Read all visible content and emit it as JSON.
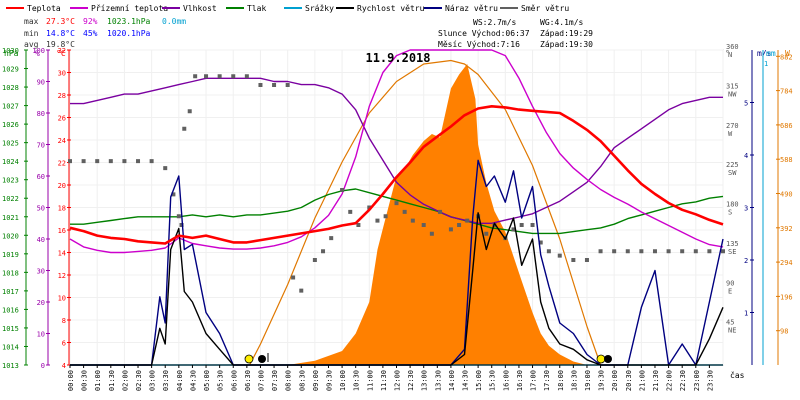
{
  "legend": [
    {
      "label": "Teplota",
      "color": "#ff0000"
    },
    {
      "label": "Přízemní teplota",
      "color": "#cc00cc"
    },
    {
      "label": "Vlhkost",
      "color": "#7a00a0"
    },
    {
      "label": "Tlak",
      "color": "#008000"
    },
    {
      "label": "Srážky",
      "color": "#00a0d0"
    },
    {
      "label": "Rychlost větru",
      "color": "#000000"
    },
    {
      "label": "Náraz větru",
      "color": "#000080"
    },
    {
      "label": "Směr větru",
      "color": "#606060"
    }
  ],
  "stats": {
    "max_label": "max",
    "max_temp": "27.3°C",
    "max_hum": "92%",
    "max_press": "1023.1hPa",
    "max_rain": "0.0mm",
    "min_label": "min",
    "min_temp": "14.8°C",
    "min_hum": "45%",
    "min_press": "1020.1hPa",
    "avg_label": "avg",
    "avg_temp": "19.8°C"
  },
  "info": {
    "ws": "WS:2.7m/s",
    "wg": "WG:4.1m/s",
    "sun_rise": "Slunce Východ:06:37",
    "sun_set": "Západ:19:29",
    "moon_rise": "Měsíc  Východ:7:16",
    "moon_set": "Západ:19:30"
  },
  "date": "11.9.2018",
  "axis_headers": {
    "hpa": "hPa",
    "pct": "%",
    "degc": "°C",
    "deg": "°",
    "ms": "m/s",
    "mm": "mm",
    "w": "W"
  },
  "axis_hpa": [
    "1030",
    "1029",
    "1028",
    "1027",
    "1026",
    "1025",
    "1024",
    "1023",
    "1022",
    "1021",
    "1020",
    "1019",
    "1018",
    "1017",
    "1016",
    "1015",
    "1014",
    "1013"
  ],
  "axis_pct": [
    "100",
    "90",
    "80",
    "70",
    "60",
    "50",
    "40",
    "30",
    "20",
    "10",
    "0"
  ],
  "axis_temp": [
    "32",
    "30",
    "28",
    "26",
    "24",
    "22",
    "20",
    "18",
    "16",
    "14",
    "12",
    "10",
    "8",
    "6",
    "4"
  ],
  "axis_deg": [
    {
      "v": "360",
      "d": "N"
    },
    {
      "v": "315",
      "d": "NW"
    },
    {
      "v": "270",
      "d": "W"
    },
    {
      "v": "225",
      "d": "SW"
    },
    {
      "v": "180",
      "d": "S"
    },
    {
      "v": "135",
      "d": "SE"
    },
    {
      "v": "90",
      "d": "E"
    },
    {
      "v": "45",
      "d": "NE"
    }
  ],
  "axis_ms": [
    "5",
    "4",
    "3",
    "2",
    "1"
  ],
  "axis_mm": [
    "1"
  ],
  "axis_w": [
    "882",
    "784",
    "686",
    "588",
    "490",
    "392",
    "294",
    "196",
    "98"
  ],
  "x_label": "čas",
  "chart_data": {
    "type": "line",
    "title": "11.9.2018",
    "xlabel": "čas",
    "x_ticks": [
      "00:00",
      "00:30",
      "01:00",
      "01:30",
      "02:00",
      "02:30",
      "03:00",
      "03:30",
      "04:00",
      "04:30",
      "05:00",
      "05:30",
      "06:00",
      "06:30",
      "07:00",
      "07:30",
      "08:00",
      "08:30",
      "09:00",
      "09:30",
      "10:00",
      "10:30",
      "11:00",
      "11:30",
      "12:00",
      "12:30",
      "13:00",
      "13:30",
      "14:00",
      "14:30",
      "15:00",
      "15:30",
      "16:00",
      "16:30",
      "17:00",
      "17:30",
      "18:00",
      "18:30",
      "19:00",
      "19:30",
      "20:00",
      "20:30",
      "21:00",
      "21:30",
      "22:00",
      "22:30",
      "23:00",
      "23:30"
    ],
    "xlim": [
      0,
      24
    ],
    "ylim_temp": [
      4,
      32
    ],
    "ylim_humidity": [
      0,
      100
    ],
    "ylim_pressure": [
      1013,
      1030
    ],
    "ylim_direction": [
      0,
      360
    ],
    "ylim_wind": [
      0,
      6
    ],
    "ylim_radiation": [
      0,
      900
    ],
    "series": [
      {
        "name": "Teplota",
        "axis": "temp",
        "color": "#ff0000",
        "x": [
          0,
          0.5,
          1,
          1.5,
          2,
          2.5,
          3,
          3.5,
          4,
          4.5,
          5,
          5.5,
          6,
          6.5,
          7,
          7.5,
          8,
          8.5,
          9,
          9.5,
          10,
          10.5,
          11,
          11.5,
          12,
          12.5,
          13,
          13.5,
          14,
          14.5,
          15,
          15.5,
          16,
          16.5,
          17,
          17.5,
          18,
          18.5,
          19,
          19.5,
          20,
          20.5,
          21,
          21.5,
          22,
          22.5,
          23,
          23.5,
          24
        ],
        "y": [
          16.2,
          15.9,
          15.5,
          15.3,
          15.2,
          15.0,
          14.9,
          14.8,
          15.5,
          15.3,
          15.5,
          15.2,
          14.9,
          14.9,
          15.1,
          15.3,
          15.5,
          15.7,
          15.9,
          16.1,
          16.4,
          16.6,
          17.8,
          19.2,
          20.7,
          22.0,
          23.4,
          24.3,
          25.2,
          26.2,
          26.8,
          27.0,
          26.9,
          26.7,
          26.6,
          26.5,
          26.4,
          25.7,
          24.9,
          23.9,
          22.6,
          21.3,
          20.1,
          19.2,
          18.4,
          17.8,
          17.4,
          16.9,
          16.5
        ]
      },
      {
        "name": "Přízemní teplota",
        "axis": "temp",
        "color": "#cc00cc",
        "x": [
          0,
          0.5,
          1,
          1.5,
          2,
          2.5,
          3,
          3.5,
          4,
          4.5,
          5,
          5.5,
          6,
          6.5,
          7,
          7.5,
          8,
          8.5,
          9,
          9.5,
          10,
          10.5,
          11,
          11.5,
          12,
          12.5,
          13,
          13.5,
          14,
          14.5,
          15,
          15.5,
          16,
          16.5,
          17,
          17.5,
          18,
          18.5,
          19,
          19.5,
          20,
          20.5,
          21,
          21.5,
          22,
          22.5,
          23,
          23.5,
          24
        ],
        "y": [
          15.2,
          14.5,
          14.2,
          14.0,
          14.0,
          14.1,
          14.2,
          14.4,
          15.3,
          14.8,
          14.6,
          14.4,
          14.3,
          14.3,
          14.4,
          14.6,
          14.9,
          15.4,
          16.2,
          17.3,
          19.2,
          22.5,
          27.0,
          30.0,
          31.5,
          32.0,
          32.0,
          32.0,
          32.0,
          32.0,
          32.0,
          32.0,
          31.5,
          29.5,
          27.0,
          24.7,
          22.8,
          21.5,
          20.5,
          19.6,
          18.9,
          18.3,
          17.6,
          17.0,
          16.4,
          15.8,
          15.2,
          14.7,
          14.5
        ]
      },
      {
        "name": "Vlhkost",
        "axis": "humidity",
        "color": "#7a00a0",
        "x": [
          0,
          0.5,
          1,
          1.5,
          2,
          2.5,
          3,
          3.5,
          4,
          4.5,
          5,
          5.5,
          6,
          6.5,
          7,
          7.5,
          8,
          8.5,
          9,
          9.5,
          10,
          10.5,
          11,
          11.5,
          12,
          12.5,
          13,
          13.5,
          14,
          14.5,
          15,
          15.5,
          16,
          16.5,
          17,
          17.5,
          18,
          18.5,
          19,
          19.5,
          20,
          20.5,
          21,
          21.5,
          22,
          22.5,
          23,
          23.5,
          24
        ],
        "y": [
          83,
          83,
          84,
          85,
          86,
          86,
          87,
          88,
          89,
          90,
          91,
          91,
          91,
          91,
          91,
          90,
          90,
          89,
          89,
          88,
          86,
          81,
          72,
          65,
          58,
          54,
          51,
          49,
          47,
          46,
          45,
          45,
          46,
          47,
          48,
          50,
          52,
          55,
          58,
          63,
          69,
          72,
          75,
          78,
          81,
          83,
          84,
          85,
          85
        ]
      },
      {
        "name": "Tlak",
        "axis": "pressure",
        "color": "#008000",
        "x": [
          0,
          0.5,
          1,
          1.5,
          2,
          2.5,
          3,
          3.5,
          4,
          4.5,
          5,
          5.5,
          6,
          6.5,
          7,
          7.5,
          8,
          8.5,
          9,
          9.5,
          10,
          10.5,
          11,
          11.5,
          12,
          12.5,
          13,
          13.5,
          14,
          14.5,
          15,
          15.5,
          16,
          16.5,
          17,
          17.5,
          18,
          18.5,
          19,
          19.5,
          20,
          20.5,
          21,
          21.5,
          22,
          22.5,
          23,
          23.5,
          24
        ],
        "y": [
          1020.6,
          1020.6,
          1020.7,
          1020.8,
          1020.9,
          1021.0,
          1021.0,
          1021.0,
          1021.0,
          1021.1,
          1021.0,
          1021.1,
          1021.0,
          1021.1,
          1021.1,
          1021.2,
          1021.3,
          1021.5,
          1021.9,
          1022.2,
          1022.4,
          1022.5,
          1022.3,
          1022.1,
          1021.9,
          1021.7,
          1021.5,
          1021.3,
          1021.0,
          1020.8,
          1020.6,
          1020.4,
          1020.3,
          1020.2,
          1020.1,
          1020.1,
          1020.1,
          1020.2,
          1020.3,
          1020.4,
          1020.6,
          1020.9,
          1021.1,
          1021.3,
          1021.5,
          1021.7,
          1021.8,
          1022.0,
          1022.1
        ]
      },
      {
        "name": "Rychlost větru",
        "axis": "wind",
        "color": "#000000",
        "x": [
          0,
          1,
          2,
          2.5,
          3,
          3.3,
          3.5,
          3.7,
          4,
          4.2,
          4.5,
          5,
          5.5,
          6,
          6.5,
          7,
          7.5,
          8,
          9,
          10,
          11,
          12,
          13,
          13.5,
          14,
          14.5,
          14.8,
          15,
          15.3,
          15.6,
          16,
          16.3,
          16.6,
          17,
          17.3,
          17.6,
          18,
          18.5,
          19,
          19.5,
          20,
          20.5,
          21,
          22,
          23,
          23.5,
          24
        ],
        "y": [
          0,
          0,
          0,
          0,
          0,
          0.7,
          0.4,
          2.2,
          2.6,
          1.4,
          1.2,
          0.6,
          0.3,
          0,
          0,
          0,
          0,
          0,
          0,
          0,
          0,
          0,
          0,
          0,
          0,
          0.2,
          1.8,
          2.9,
          2.2,
          2.7,
          2.4,
          2.8,
          1.9,
          2.4,
          1.2,
          0.7,
          0.4,
          0.3,
          0.1,
          0,
          0,
          0,
          0,
          0,
          0,
          0.5,
          1.1
        ]
      },
      {
        "name": "Náraz větru",
        "axis": "wind",
        "color": "#000080",
        "x": [
          0,
          1,
          2,
          2.5,
          3,
          3.3,
          3.5,
          3.7,
          4,
          4.2,
          4.5,
          5,
          5.5,
          6,
          6.5,
          7,
          7.5,
          8,
          9,
          10,
          11,
          12,
          13,
          13.5,
          14,
          14.5,
          14.8,
          15,
          15.3,
          15.6,
          16,
          16.3,
          16.6,
          17,
          17.3,
          17.6,
          18,
          18.5,
          19,
          19.5,
          20,
          20.5,
          21,
          21.5,
          22,
          22.5,
          23,
          23.5,
          24
        ],
        "y": [
          0,
          0,
          0,
          0,
          0,
          1.3,
          0.8,
          3.2,
          3.6,
          2.2,
          2.3,
          1.0,
          0.6,
          0,
          0,
          0,
          0,
          0,
          0,
          0,
          0,
          0,
          0,
          0,
          0,
          0.3,
          2.8,
          3.9,
          3.4,
          3.6,
          3.1,
          3.7,
          2.8,
          3.4,
          2.1,
          1.5,
          0.8,
          0.6,
          0.2,
          0,
          0,
          0,
          1.1,
          1.8,
          0,
          0.4,
          0,
          1.2,
          2.4
        ]
      },
      {
        "name": "Směr větru",
        "axis": "direction",
        "color": "#606060",
        "x": [
          0,
          0.5,
          1,
          1.5,
          2,
          2.5,
          3,
          3.5,
          3.8,
          4,
          4.1,
          4.2,
          4.4,
          4.6,
          5,
          5.5,
          6,
          6.5,
          7,
          7.5,
          8,
          8.2,
          8.5,
          9,
          9.3,
          9.6,
          10,
          10.3,
          10.6,
          11,
          11.3,
          11.6,
          12,
          12.3,
          12.6,
          13,
          13.3,
          13.6,
          14,
          14.3,
          14.6,
          15,
          15.3,
          15.6,
          16,
          16.3,
          16.6,
          17,
          17.3,
          17.6,
          18,
          18.5,
          19,
          19.5,
          20,
          20.5,
          21,
          21.5,
          22,
          22.5,
          23,
          23.5,
          24
        ],
        "y": [
          233,
          233,
          233,
          233,
          233,
          233,
          233,
          225,
          195,
          170,
          160,
          270,
          290,
          330,
          330,
          330,
          330,
          330,
          320,
          320,
          320,
          100,
          85,
          120,
          130,
          145,
          200,
          175,
          160,
          180,
          165,
          170,
          185,
          175,
          165,
          160,
          150,
          175,
          155,
          160,
          165,
          170,
          150,
          160,
          145,
          155,
          160,
          160,
          140,
          130,
          125,
          120,
          120,
          130,
          130,
          130,
          130,
          130,
          130,
          130,
          130,
          130,
          130
        ]
      },
      {
        "name": "Srážky",
        "axis": "rain",
        "color": "#00a0d0",
        "x": [
          0,
          24
        ],
        "y": [
          0,
          0
        ]
      },
      {
        "name": "Sluneční záření",
        "axis": "radiation",
        "color": "#ff8000",
        "type": "area",
        "x": [
          6.6,
          7,
          8,
          9,
          10,
          10.5,
          11,
          11.3,
          11.6,
          12,
          12.3,
          12.6,
          13,
          13.3,
          13.6,
          14,
          14.3,
          14.6,
          14.9,
          15,
          15.3,
          15.6,
          16,
          16.3,
          16.6,
          17,
          17.3,
          17.6,
          18,
          18.5,
          19
        ],
        "y": [
          0,
          0,
          0,
          12,
          40,
          90,
          180,
          330,
          420,
          540,
          560,
          600,
          640,
          660,
          650,
          790,
          830,
          860,
          760,
          630,
          520,
          440,
          380,
          310,
          240,
          150,
          90,
          55,
          30,
          10,
          0
        ]
      },
      {
        "name": "Teoretické záření",
        "axis": "radiation",
        "color": "#e07800",
        "x": [
          6.6,
          7,
          8,
          9,
          10,
          11,
          12,
          13,
          14,
          14.5,
          15,
          16,
          17,
          18,
          19,
          19.5
        ],
        "y": [
          0,
          60,
          230,
          420,
          580,
          720,
          810,
          860,
          870,
          860,
          830,
          730,
          570,
          360,
          110,
          0
        ]
      }
    ]
  }
}
